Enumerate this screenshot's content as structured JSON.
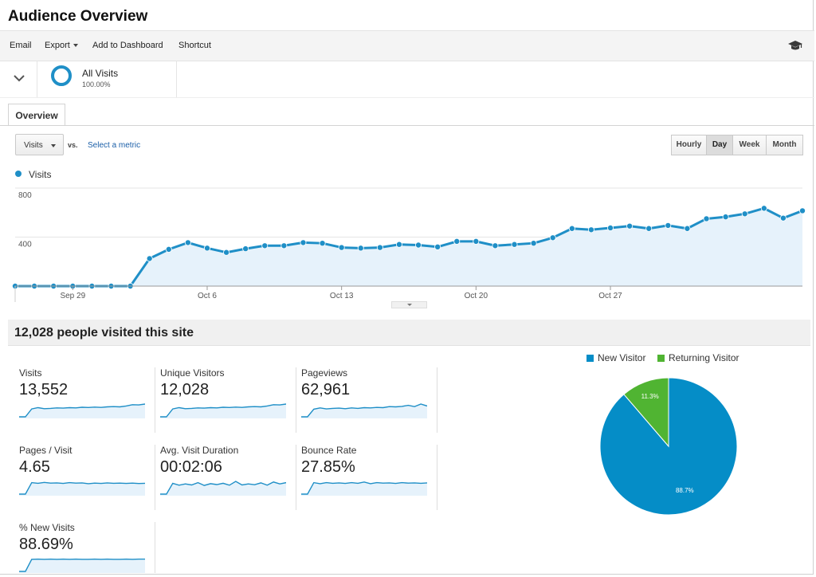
{
  "page": {
    "title": "Audience Overview"
  },
  "toolbar": {
    "email": "Email",
    "export": "Export",
    "add_to_dashboard": "Add to Dashboard",
    "shortcut": "Shortcut",
    "help_icon": "graduation-cap-icon"
  },
  "segment": {
    "name": "All Visits",
    "percent": "100.00%",
    "ring_color": "#1f8fc7"
  },
  "tabs": [
    {
      "label": "Overview",
      "active": true
    }
  ],
  "controls": {
    "metric": "Visits",
    "vs": "vs.",
    "select_metric": "Select a metric",
    "granularity": [
      {
        "label": "Hourly",
        "active": false
      },
      {
        "label": "Day",
        "active": true
      },
      {
        "label": "Week",
        "active": false
      },
      {
        "label": "Month",
        "active": false
      }
    ]
  },
  "chart_data": {
    "type": "area",
    "legend": "Visits",
    "series_color": "#1f8fc7",
    "fill_color": "#e6f2fb",
    "ylim": [
      0,
      800
    ],
    "yticks": [
      "800",
      "400"
    ],
    "xtick_labels": [
      {
        "label": "Sep 29",
        "index": 3
      },
      {
        "label": "Oct 6",
        "index": 10
      },
      {
        "label": "Oct 13",
        "index": 17
      },
      {
        "label": "Oct 20",
        "index": 24
      },
      {
        "label": "Oct 27",
        "index": 31
      }
    ],
    "values": [
      0,
      0,
      0,
      0,
      0,
      0,
      0,
      225,
      300,
      355,
      310,
      275,
      305,
      330,
      330,
      355,
      350,
      315,
      310,
      315,
      340,
      335,
      320,
      365,
      365,
      330,
      340,
      350,
      395,
      470,
      460,
      475,
      490,
      470,
      495,
      470,
      550,
      565,
      590,
      635,
      555,
      615
    ]
  },
  "summary": {
    "text": "12,028 people visited this site"
  },
  "metrics": [
    {
      "label": "Visits",
      "value": "13,552",
      "trend": [
        0,
        0,
        0.62,
        0.72,
        0.64,
        0.66,
        0.7,
        0.68,
        0.72,
        0.7,
        0.75,
        0.73,
        0.76,
        0.74,
        0.78,
        0.8,
        0.78,
        0.85,
        0.95,
        0.93,
        1
      ]
    },
    {
      "label": "Unique Visitors",
      "value": "12,028",
      "trend": [
        0,
        0,
        0.62,
        0.72,
        0.64,
        0.66,
        0.7,
        0.68,
        0.72,
        0.7,
        0.75,
        0.73,
        0.76,
        0.74,
        0.78,
        0.8,
        0.78,
        0.85,
        0.95,
        0.93,
        1
      ]
    },
    {
      "label": "Pageviews",
      "value": "62,961",
      "trend": [
        0,
        0,
        0.6,
        0.7,
        0.62,
        0.66,
        0.68,
        0.64,
        0.7,
        0.66,
        0.72,
        0.7,
        0.74,
        0.72,
        0.8,
        0.78,
        0.82,
        0.9,
        0.8,
        1,
        0.85
      ]
    },
    {
      "label": "Pages / Visit",
      "value": "4.65",
      "trend": [
        0,
        0,
        0.9,
        0.85,
        0.92,
        0.86,
        0.88,
        0.84,
        0.9,
        0.86,
        0.88,
        0.82,
        0.86,
        0.84,
        0.88,
        0.85,
        0.86,
        0.84,
        0.86,
        0.83,
        0.85
      ]
    },
    {
      "label": "Avg. Visit Duration",
      "value": "00:02:06",
      "trend": [
        0,
        0,
        0.85,
        0.7,
        0.8,
        0.72,
        0.9,
        0.68,
        0.82,
        0.75,
        0.85,
        0.7,
        1,
        0.72,
        0.8,
        0.74,
        0.88,
        0.7,
        0.95,
        0.8,
        0.9
      ]
    },
    {
      "label": "Bounce Rate",
      "value": "27.85%",
      "trend": [
        0,
        0,
        0.9,
        0.82,
        0.9,
        0.85,
        0.88,
        0.84,
        0.9,
        0.85,
        0.95,
        0.82,
        0.9,
        0.86,
        0.88,
        0.84,
        0.9,
        0.86,
        0.88,
        0.85,
        0.88
      ]
    },
    {
      "label": "% New Visits",
      "value": "88.69%",
      "trend": [
        0,
        0,
        0.95,
        0.96,
        0.95,
        0.96,
        0.95,
        0.96,
        0.95,
        0.96,
        0.95,
        0.95,
        0.96,
        0.95,
        0.96,
        0.95,
        0.95,
        0.96,
        0.95,
        0.96,
        0.96
      ]
    }
  ],
  "pie": {
    "legend": [
      {
        "label": "New Visitor",
        "color": "#058dc7"
      },
      {
        "label": "Returning Visitor",
        "color": "#50b432"
      }
    ],
    "slices": [
      {
        "label": "New Visitor",
        "value": 88.7,
        "text": "88.7%",
        "color": "#058dc7"
      },
      {
        "label": "Returning Visitor",
        "value": 11.3,
        "text": "11.3%",
        "color": "#50b432"
      }
    ]
  }
}
